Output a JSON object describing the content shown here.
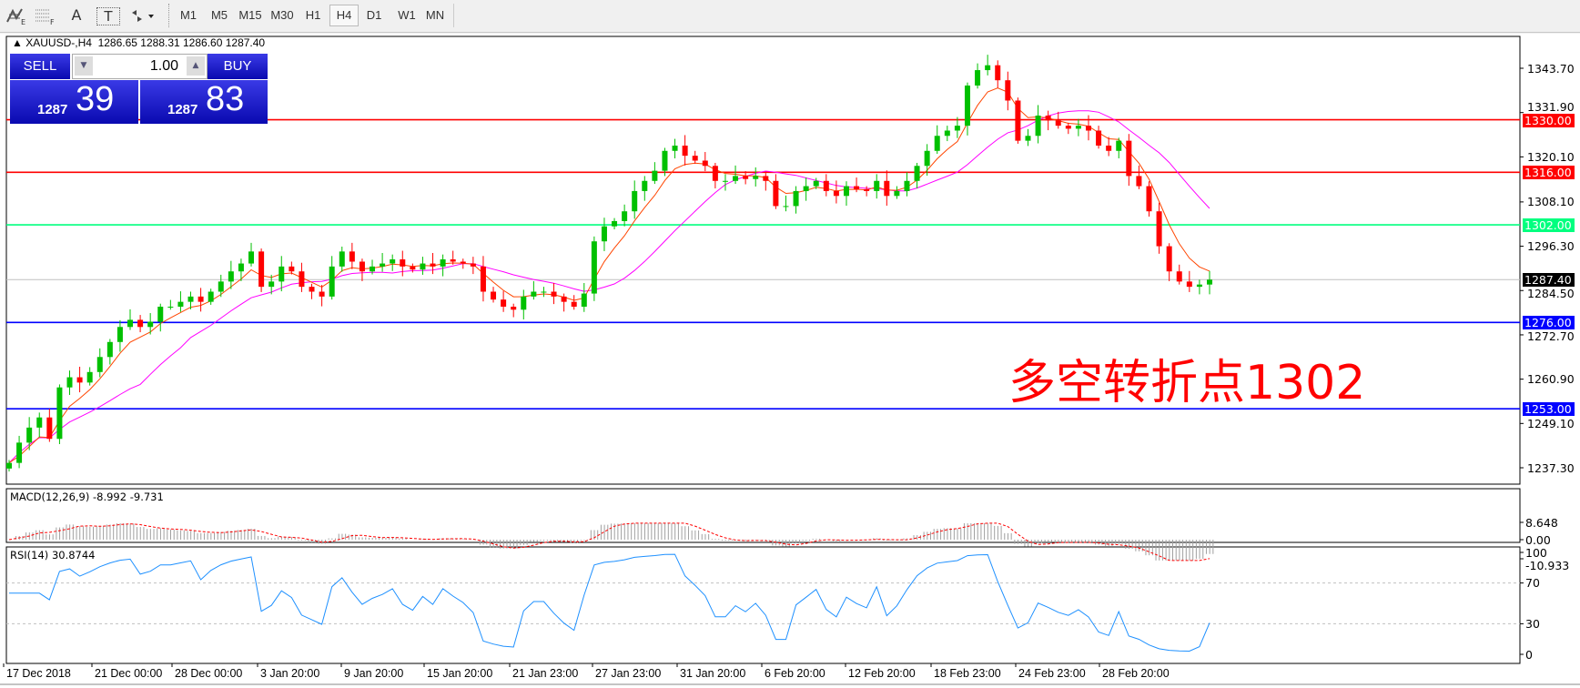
{
  "toolbar": {
    "tools": [
      {
        "icon": "elliott-wave-icon"
      },
      {
        "icon": "fibonacci-grid-icon"
      },
      {
        "icon": "text-icon",
        "label": "A"
      },
      {
        "icon": "text-label-icon",
        "label": "T"
      },
      {
        "icon": "arrows-dropdown-icon"
      }
    ],
    "timeframes": [
      "M1",
      "M5",
      "M15",
      "M30",
      "H1",
      "H4",
      "D1",
      "W1",
      "MN"
    ],
    "active_timeframe": "H4"
  },
  "chart": {
    "header": "XAUUSD-,H4  1286.65 1288.31 1286.60 1287.40",
    "trade_panel": {
      "sell_label": "SELL",
      "buy_label": "BUY",
      "lot": "1.00",
      "sell_prefix": "1287",
      "sell_big": "39",
      "buy_prefix": "1287",
      "buy_big": "83"
    },
    "annotation": "多空转折点1302",
    "macd_label": "MACD(12,26,9) -8.992 -9.731",
    "rsi_label": "RSI(14) 30.8744"
  },
  "chart_data": {
    "type": "candlestick",
    "symbol": "XAUUSD-",
    "timeframe": "H4",
    "ohlc_last": {
      "open": 1286.65,
      "high": 1288.31,
      "low": 1286.6,
      "close": 1287.4
    },
    "price_ticks": [
      "1343.70",
      "1331.90",
      "1320.10",
      "1308.10",
      "1296.30",
      "1284.50",
      "1272.70",
      "1260.90",
      "1249.10",
      "1237.30"
    ],
    "ylim": [
      1237.3,
      1343.7
    ],
    "x_ticks": [
      "17 Dec 2018",
      "21 Dec 00:00",
      "28 Dec 00:00",
      "3 Jan 20:00",
      "9 Jan 20:00",
      "15 Jan 20:00",
      "21 Jan 23:00",
      "27 Jan 23:00",
      "31 Jan 20:00",
      "6 Feb 20:00",
      "12 Feb 20:00",
      "18 Feb 23:00",
      "24 Feb 23:00",
      "28 Feb 20:00"
    ],
    "levels": [
      {
        "price": "1330.00",
        "color": "#ff0000"
      },
      {
        "price": "1316.00",
        "color": "#ff0000"
      },
      {
        "price": "1302.00",
        "color": "#00ff7f"
      },
      {
        "price": "1287.40",
        "color": "#000000",
        "current": true
      },
      {
        "price": "1276.00",
        "color": "#0000ff"
      },
      {
        "price": "1253.00",
        "color": "#0000ff"
      }
    ],
    "closes": [
      1238.6,
      1244,
      1248,
      1250.7,
      1245,
      1258.7,
      1261.4,
      1260,
      1262.8,
      1266.8,
      1270.8,
      1274.8,
      1276.7,
      1274.8,
      1276.2,
      1280.2,
      1280.2,
      1281.5,
      1282.9,
      1281.5,
      1284.2,
      1286.9,
      1289.6,
      1291.7,
      1294.9,
      1285.5,
      1286.9,
      1290.9,
      1289.6,
      1285.5,
      1284.2,
      1282.9,
      1290.9,
      1294.9,
      1292.2,
      1289.6,
      1290.9,
      1291.7,
      1292.8,
      1290.9,
      1290.1,
      1291.7,
      1290.9,
      1292.8,
      1292.2,
      1291.7,
      1290.9,
      1284.2,
      1282.1,
      1280.2,
      1279.4,
      1282.9,
      1284.2,
      1284.2,
      1282.9,
      1281.5,
      1280.2,
      1283.7,
      1297.6,
      1301.6,
      1303,
      1305.6,
      1311,
      1313.7,
      1316.4,
      1321.7,
      1323.1,
      1320.4,
      1319.1,
      1317.7,
      1313.7,
      1313.7,
      1315,
      1314.2,
      1315,
      1313.7,
      1307,
      1307,
      1311,
      1312.3,
      1313.7,
      1311,
      1309.7,
      1312.3,
      1311.5,
      1311,
      1313.7,
      1309.7,
      1311,
      1313.7,
      1317.7,
      1321.7,
      1325.7,
      1327.1,
      1328.4,
      1339.1,
      1343.2,
      1344.5,
      1340.5,
      1335.1,
      1324.4,
      1325.7,
      1331.1,
      1329.8,
      1328.4,
      1327.6,
      1328.4,
      1327.1,
      1323.1,
      1321.7,
      1324.4,
      1315,
      1312.3,
      1305.6,
      1296.3,
      1289.6,
      1286.9,
      1285.5,
      1286.1,
      1287.4
    ],
    "colors": {
      "bull": "#00c000",
      "bear": "#ff0000",
      "ma_fast": "#ff4500",
      "ma_slow": "#ff00ff",
      "rsi": "#1e90ff",
      "macd_signal": "#ff0000"
    },
    "macd": {
      "ticks": [
        "8.648",
        "0.00",
        "-10.933"
      ],
      "main": -8.992,
      "signal": -9.731
    },
    "rsi": {
      "ticks": [
        "100",
        "70",
        "30",
        "0"
      ],
      "value": 30.8744,
      "levels": [
        70,
        30
      ]
    }
  }
}
